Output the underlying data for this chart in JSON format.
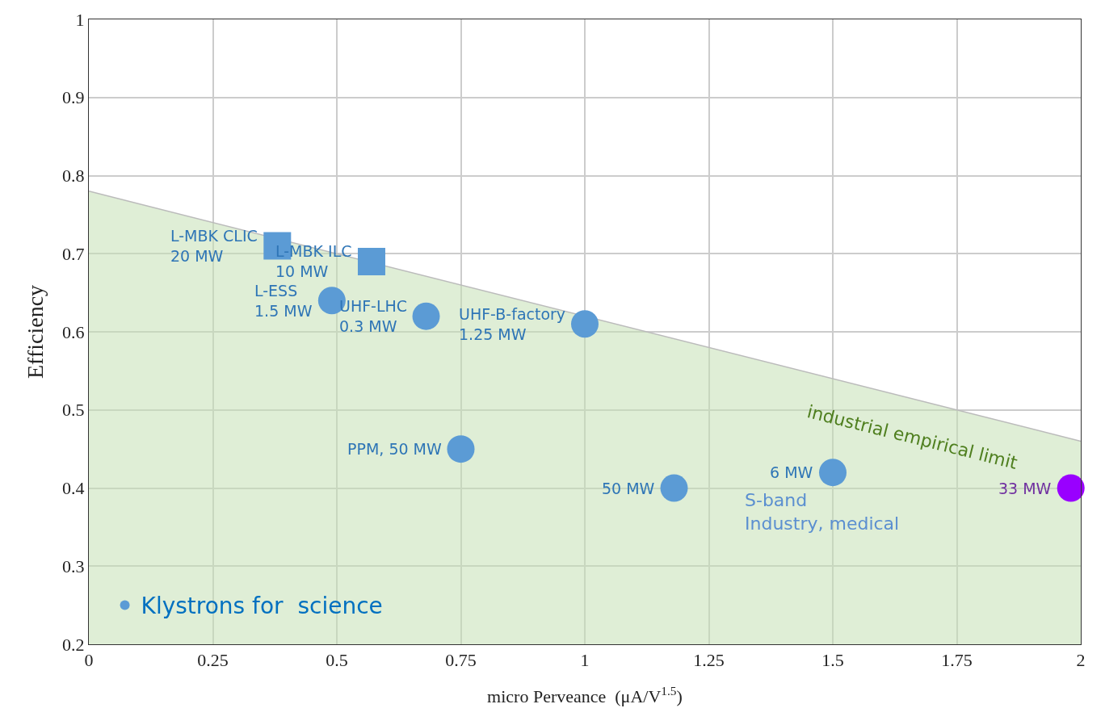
{
  "chart_data": {
    "type": "scatter",
    "xlabel": "micro Perveance  (μA/V$^{1.5}$)",
    "ylabel": "Efficiency",
    "xlim": [
      0,
      2
    ],
    "xticks": [
      0,
      0.25,
      0.5,
      0.75,
      1,
      1.25,
      1.5,
      1.75,
      2
    ],
    "ylim": [
      0.2,
      1
    ],
    "yticks": [
      0.2,
      0.3,
      0.4,
      0.5,
      0.6,
      0.7,
      0.8,
      0.9,
      1
    ],
    "grid": true,
    "legend": "bottom left",
    "series": [
      {
        "type": "area",
        "color": "#c5e0b4",
        "x": [
          0,
          2
        ],
        "values": [
          0.78,
          0.46
        ],
        "marker": "none"
      },
      {
        "name": "Klystrons for  science",
        "marker": "circle",
        "color": "#5b9bd5",
        "x": [
          0.49,
          0.68,
          1.0,
          0.75,
          1.18,
          1.5,
          1.98
        ],
        "values": [
          0.64,
          0.62,
          0.61,
          0.45,
          0.4,
          0.42,
          0.4
        ],
        "colors": [
          "#5b9bd5",
          "#5b9bd5",
          "#5b9bd5",
          "#5b9bd5",
          "#5b9bd5",
          "#5b9bd5",
          "#9900ff"
        ]
      },
      {
        "marker": "square",
        "color": "#5b9bd5",
        "x": [
          0.38,
          0.57
        ],
        "values": [
          0.71,
          0.69
        ]
      }
    ],
    "annotations": [
      {
        "text": "L-MBK CLIC\n20 MW",
        "x": 0.38,
        "y": 0.71
      },
      {
        "text": "L-MBK ILC\n10 MW",
        "x": 0.57,
        "y": 0.69
      },
      {
        "text": "L-ESS\n1.5 MW",
        "x": 0.49,
        "y": 0.64
      },
      {
        "text": "UHF-LHC\n0.3 MW",
        "x": 0.68,
        "y": 0.62
      },
      {
        "text": "UHF-B-factory\n1.25 MW",
        "x": 1.0,
        "y": 0.61
      },
      {
        "text": "PPM, 50 MW",
        "x": 0.75,
        "y": 0.45
      },
      {
        "text": "50 MW",
        "x": 1.18,
        "y": 0.4
      },
      {
        "text": "6 MW",
        "x": 1.5,
        "y": 0.42
      },
      "S-band\nIndustry, medical",
      {
        "text": "33 MW",
        "x": 1.98,
        "y": 0.4
      },
      {
        "text": "industrial empirical limit",
        "x": 1.66,
        "y": 0.514
      }
    ]
  }
}
